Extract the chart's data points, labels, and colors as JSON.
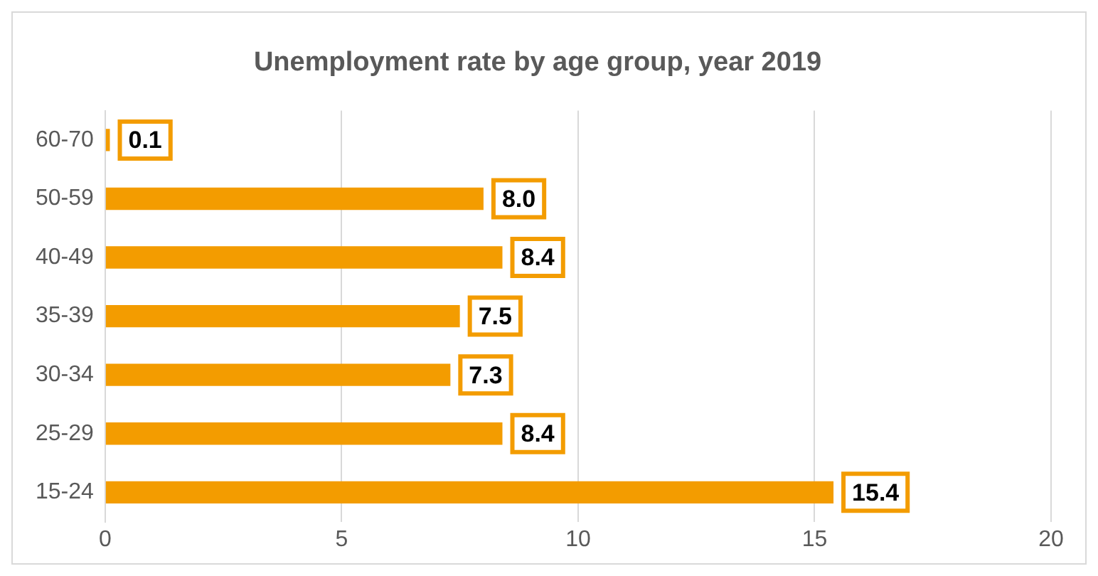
{
  "chart_data": {
    "type": "bar",
    "orientation": "horizontal",
    "title": "Unemployment rate by age group, year 2019",
    "categories": [
      "60-70",
      "50-59",
      "40-49",
      "35-39",
      "30-34",
      "25-29",
      "15-24"
    ],
    "values": [
      0.1,
      8.0,
      8.4,
      7.5,
      7.3,
      8.4,
      15.4
    ],
    "value_labels": [
      "0.1",
      "8.0",
      "8.4",
      "7.5",
      "7.3",
      "8.4",
      "15.4"
    ],
    "color": "#f39c00",
    "xlim": [
      0,
      20
    ],
    "xticks": [
      0,
      5,
      10,
      15,
      20
    ],
    "grid": "x",
    "legend": false
  }
}
